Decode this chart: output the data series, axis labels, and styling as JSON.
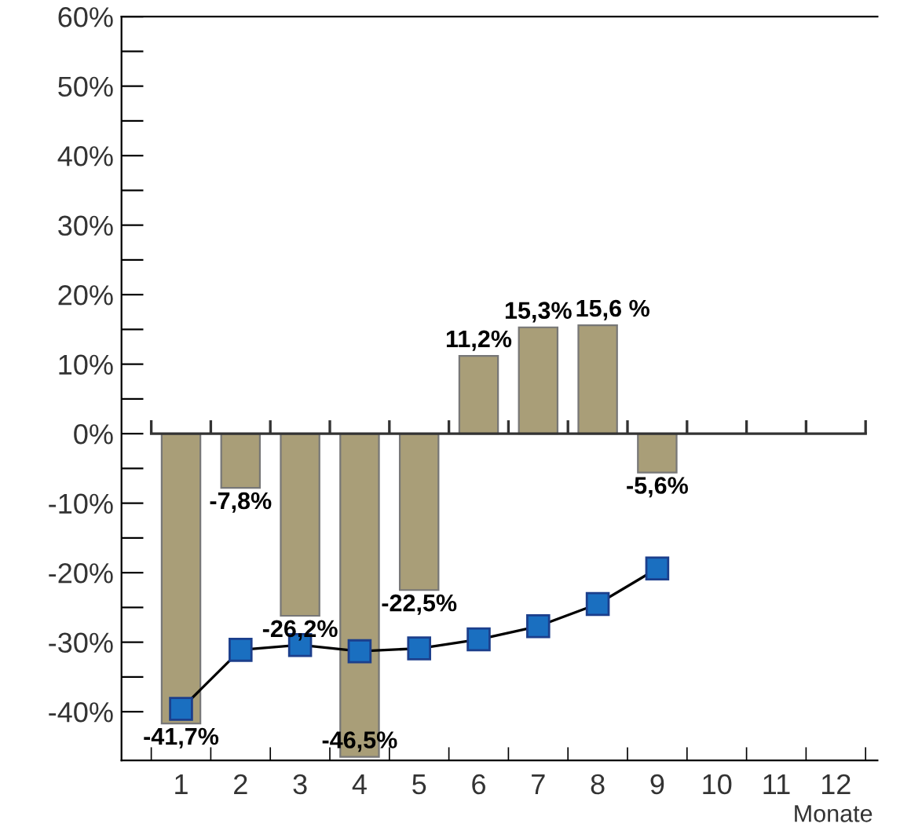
{
  "chart_data": {
    "type": "bar",
    "xlabel": "Monate",
    "categories": [
      "1",
      "2",
      "3",
      "4",
      "5",
      "6",
      "7",
      "8",
      "9",
      "10",
      "11",
      "12"
    ],
    "series": [
      {
        "color": "#a99e78",
        "values": [
          -41.7,
          -7.8,
          -26.2,
          -46.5,
          -22.5,
          11.2,
          15.3,
          15.6,
          -5.6,
          null,
          null,
          null
        ],
        "value_labels": [
          "-41,7%",
          "-7,8%",
          "-26,2%",
          "-46,5%",
          "-22,5%",
          "11,2%",
          "15,3%",
          "15,6 %",
          "-5,6%",
          null,
          null,
          null
        ]
      },
      {
        "type": "line",
        "color": "#1a6fc0",
        "values": [
          -39.6,
          -31.1,
          -30.4,
          -31.3,
          -30.9,
          -29.6,
          -27.7,
          -24.5,
          -19.4,
          null,
          null,
          null
        ]
      }
    ],
    "ylim": [
      -47,
      60
    ],
    "yticks": [
      {
        "value": -40,
        "label": "-40%"
      },
      {
        "value": -35,
        "label": null
      },
      {
        "value": -30,
        "label": "-30%"
      },
      {
        "value": -25,
        "label": null
      },
      {
        "value": -20,
        "label": "-20%"
      },
      {
        "value": -15,
        "label": null
      },
      {
        "value": -10,
        "label": "-10%"
      },
      {
        "value": -5,
        "label": null
      },
      {
        "value": 0,
        "label": "0%"
      },
      {
        "value": 5,
        "label": null
      },
      {
        "value": 10,
        "label": "10%"
      },
      {
        "value": 15,
        "label": null
      },
      {
        "value": 20,
        "label": "20%"
      },
      {
        "value": 25,
        "label": null
      },
      {
        "value": 30,
        "label": "30%"
      },
      {
        "value": 35,
        "label": null
      },
      {
        "value": 40,
        "label": "40%"
      },
      {
        "value": 45,
        "label": null
      },
      {
        "value": 50,
        "label": "50%"
      },
      {
        "value": 55,
        "label": null
      },
      {
        "value": 60,
        "label": "60%"
      }
    ],
    "ref_lines": [
      {
        "axis": "y",
        "value": 0,
        "color": "#333333"
      }
    ],
    "marker": "square",
    "grid": false,
    "legend": false
  }
}
